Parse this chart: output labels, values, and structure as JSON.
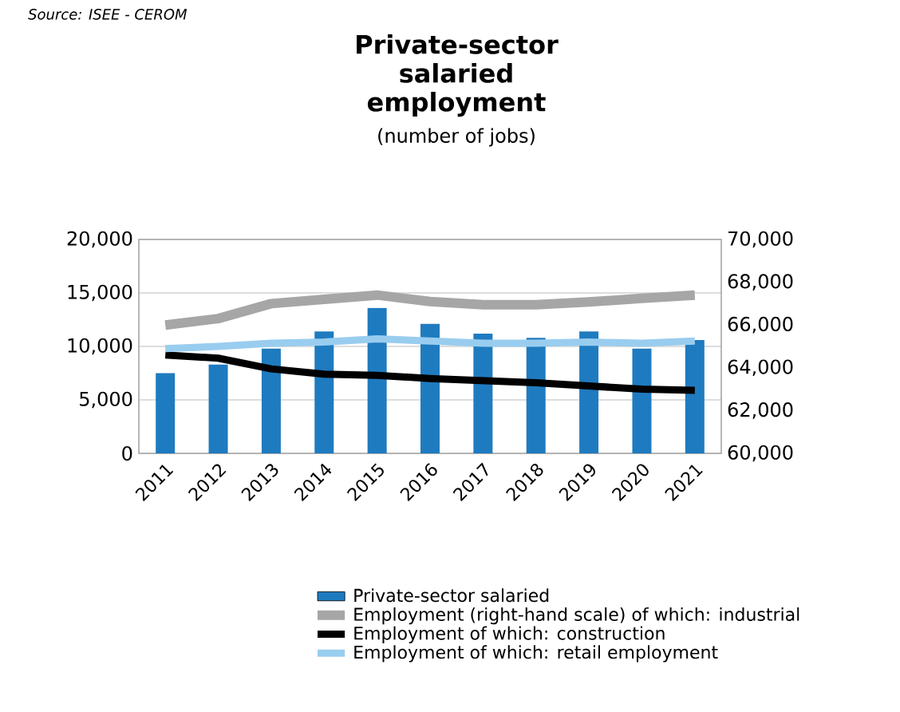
{
  "chart_data": {
    "type": "bar",
    "title": "Private-sector salaried employment",
    "subtitle": "(number of jobs)",
    "annotations": [
      "Source: ISEE - CEROM"
    ],
    "categories": [
      "2011",
      "2012",
      "2013",
      "2014",
      "2015",
      "2016",
      "2017",
      "2018",
      "2019",
      "2020",
      "2021"
    ],
    "series": [
      {
        "name": "Private-sector salaried",
        "axis": "y2",
        "color": "#1f7bbf",
        "values": [
          63750,
          64150,
          64900,
          65700,
          66800,
          66050,
          65600,
          65400,
          65700,
          64900,
          65300
        ]
      },
      {
        "name": "Employment (right-hand scale)  of which: industrial",
        "type": "line",
        "color": "#a6a6a6",
        "values": [
          12000,
          12600,
          14000,
          14400,
          14800,
          14200,
          13900,
          13900,
          14150,
          14500,
          14800
        ]
      },
      {
        "name": "Employment of which: construction",
        "type": "line",
        "color": "#000000",
        "values": [
          9200,
          8900,
          7900,
          7400,
          7300,
          7000,
          6800,
          6600,
          6300,
          6000,
          5900
        ]
      },
      {
        "name": "Employment of which: retail employment",
        "type": "line",
        "color": "#99cdef",
        "values": [
          9800,
          10000,
          10300,
          10400,
          10700,
          10500,
          10300,
          10300,
          10400,
          10300,
          10500
        ]
      }
    ],
    "ylim": [
      0,
      20000
    ],
    "yticks": [
      {
        "value": 0,
        "label": "0"
      },
      {
        "value": 5000,
        "label": "5,000"
      },
      {
        "value": 10000,
        "label": "10,000"
      },
      {
        "value": 15000,
        "label": "15,000"
      },
      {
        "value": 20000,
        "label": "20,000"
      }
    ],
    "y2lim": [
      60000,
      70000
    ],
    "y2ticks": [
      {
        "value": 60000,
        "label": "60,000"
      },
      {
        "value": 62000,
        "label": "62,000"
      },
      {
        "value": 64000,
        "label": "64,000"
      },
      {
        "value": 66000,
        "label": "66,000"
      },
      {
        "value": 68000,
        "label": "68,000"
      },
      {
        "value": 70000,
        "label": "70,000"
      }
    ],
    "grid": "y",
    "legend": "bottom",
    "marker": "none",
    "line_style": "solid"
  }
}
